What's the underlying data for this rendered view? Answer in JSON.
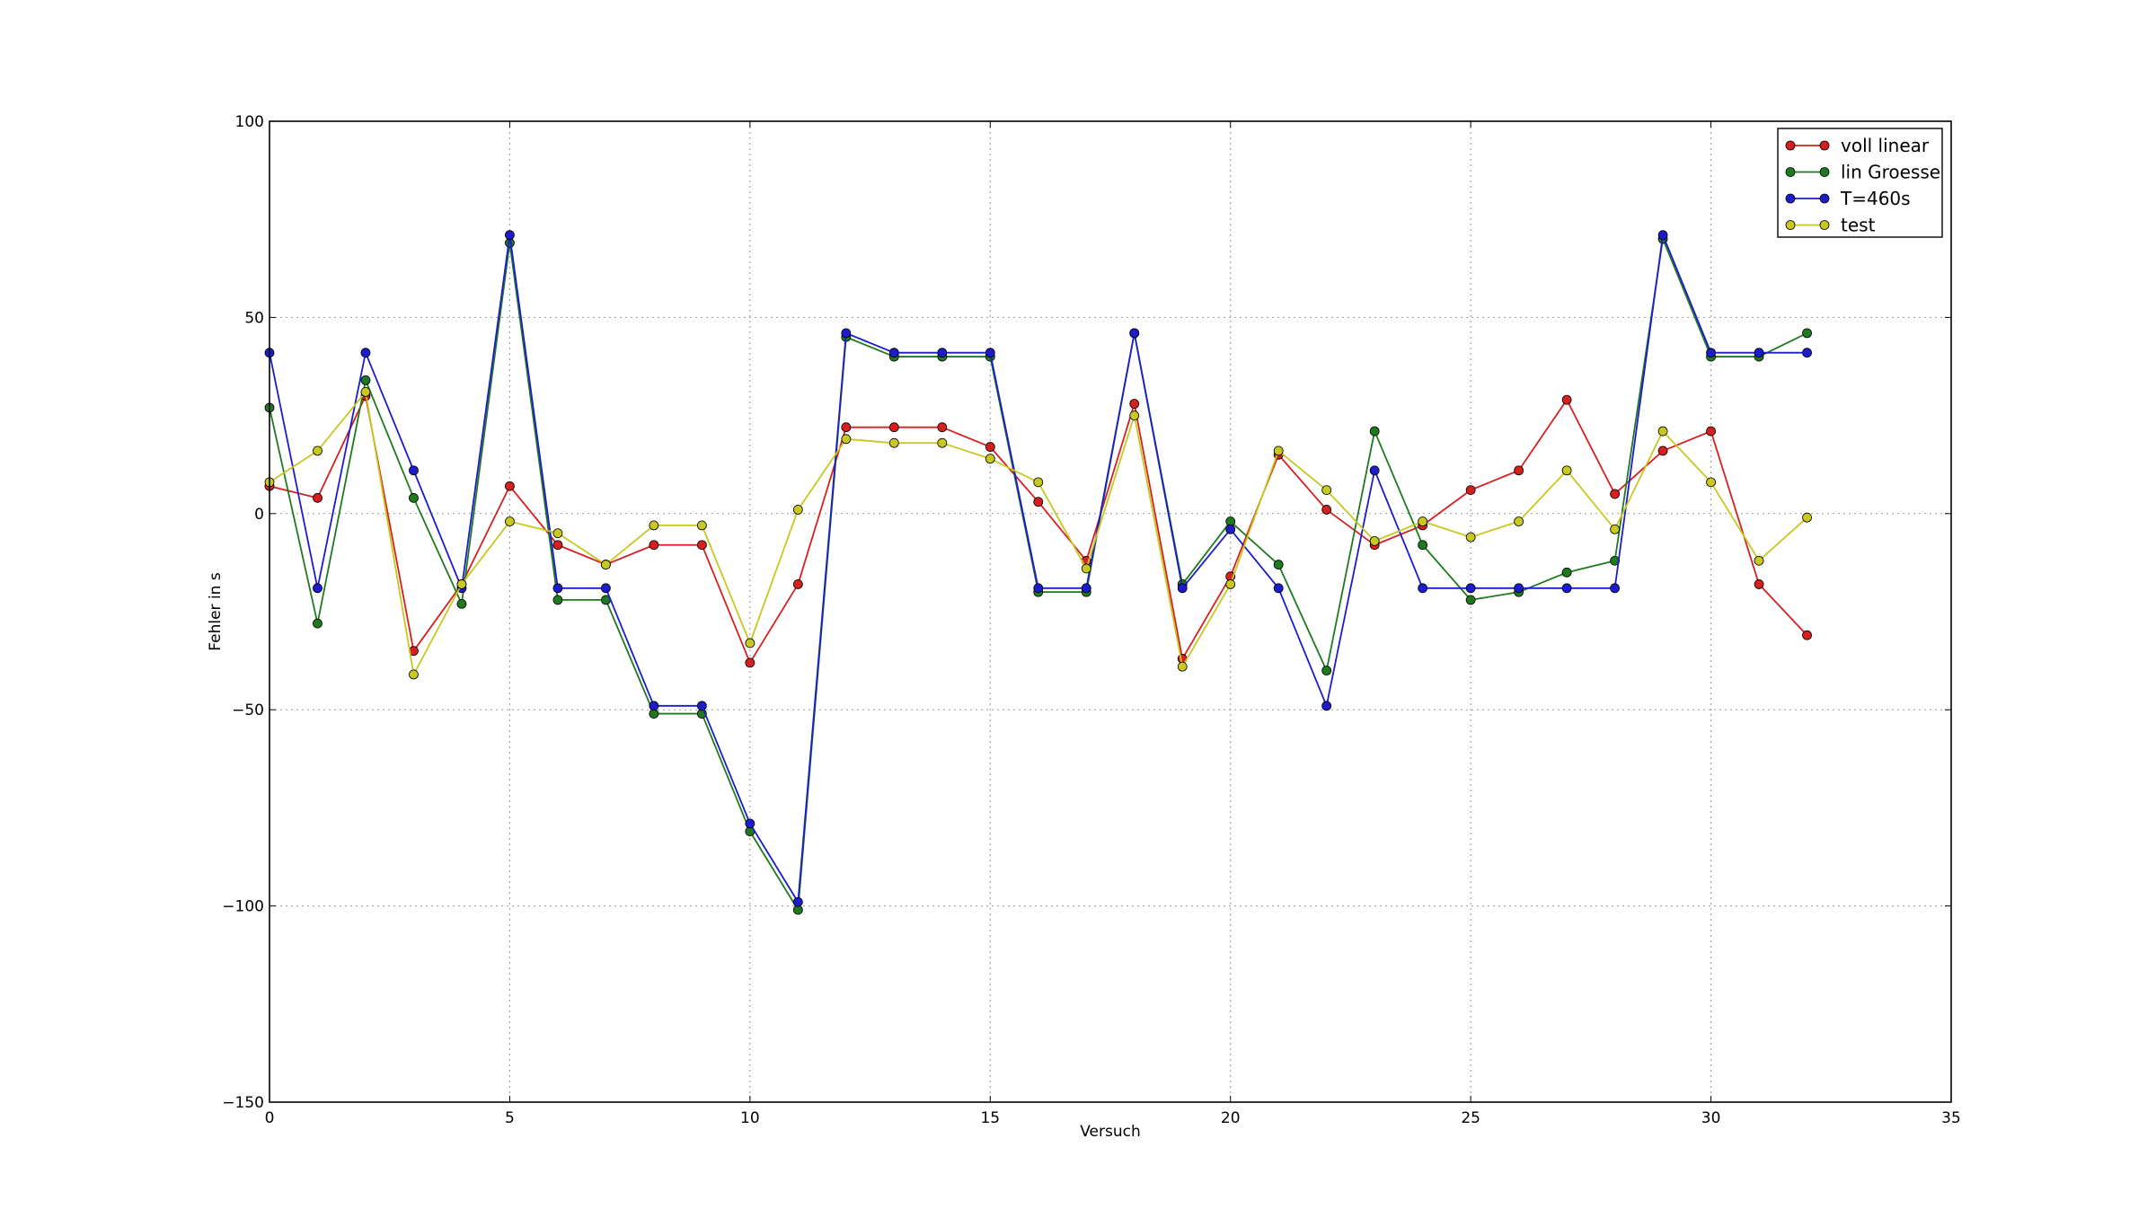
{
  "chart_data": {
    "type": "line",
    "title": "",
    "xlabel": "Versuch",
    "ylabel": "Fehler in s",
    "xlim": [
      0,
      35
    ],
    "ylim": [
      -150,
      100
    ],
    "xticks": [
      0,
      5,
      10,
      15,
      20,
      25,
      30,
      35
    ],
    "yticks": [
      -150,
      -100,
      -50,
      0,
      50,
      100
    ],
    "xtick_labels": [
      "0",
      "5",
      "10",
      "15",
      "20",
      "25",
      "30",
      "35"
    ],
    "ytick_labels": [
      "−150",
      "−100",
      "−50",
      "0",
      "50",
      "100"
    ],
    "grid": true,
    "legend_position": "top-right",
    "x": [
      0,
      1,
      2,
      3,
      4,
      5,
      6,
      7,
      8,
      9,
      10,
      11,
      12,
      13,
      14,
      15,
      16,
      17,
      18,
      19,
      20,
      21,
      22,
      23,
      24,
      25,
      26,
      27,
      28,
      29,
      30,
      31,
      32
    ],
    "series": [
      {
        "name": "voll linear",
        "color": "#d62020",
        "values": [
          7,
          4,
          30,
          -35,
          -18,
          7,
          -8,
          -13,
          -8,
          -8,
          -38,
          -18,
          22,
          22,
          22,
          17,
          3,
          -12,
          28,
          -37,
          -16,
          15,
          1,
          -8,
          -3,
          6,
          11,
          29,
          5,
          16,
          21,
          -18,
          -31
        ]
      },
      {
        "name": "lin Groesse",
        "color": "#1f7a1f",
        "values": [
          27,
          -28,
          34,
          4,
          -23,
          69,
          -22,
          -22,
          -51,
          -51,
          -81,
          -101,
          45,
          40,
          40,
          40,
          -20,
          -20,
          46,
          -18,
          -2,
          -13,
          -40,
          21,
          -8,
          -22,
          -20,
          -15,
          -12,
          70,
          40,
          40,
          46
        ]
      },
      {
        "name": "T=460s",
        "color": "#1c1ccc",
        "values": [
          41,
          -19,
          41,
          11,
          -19,
          71,
          -19,
          -19,
          -49,
          -49,
          -79,
          -99,
          46,
          41,
          41,
          41,
          -19,
          -19,
          46,
          -19,
          -4,
          -19,
          -49,
          11,
          -19,
          -19,
          -19,
          -19,
          -19,
          71,
          41,
          41,
          41
        ]
      },
      {
        "name": "test",
        "color": "#c8c820",
        "values": [
          8,
          16,
          31,
          -41,
          -18,
          -2,
          -5,
          -13,
          -3,
          -3,
          -33,
          1,
          19,
          18,
          18,
          14,
          8,
          -14,
          25,
          -39,
          -18,
          16,
          6,
          -7,
          -2,
          -6,
          -2,
          11,
          -4,
          21,
          8,
          -12,
          -1
        ]
      }
    ]
  }
}
